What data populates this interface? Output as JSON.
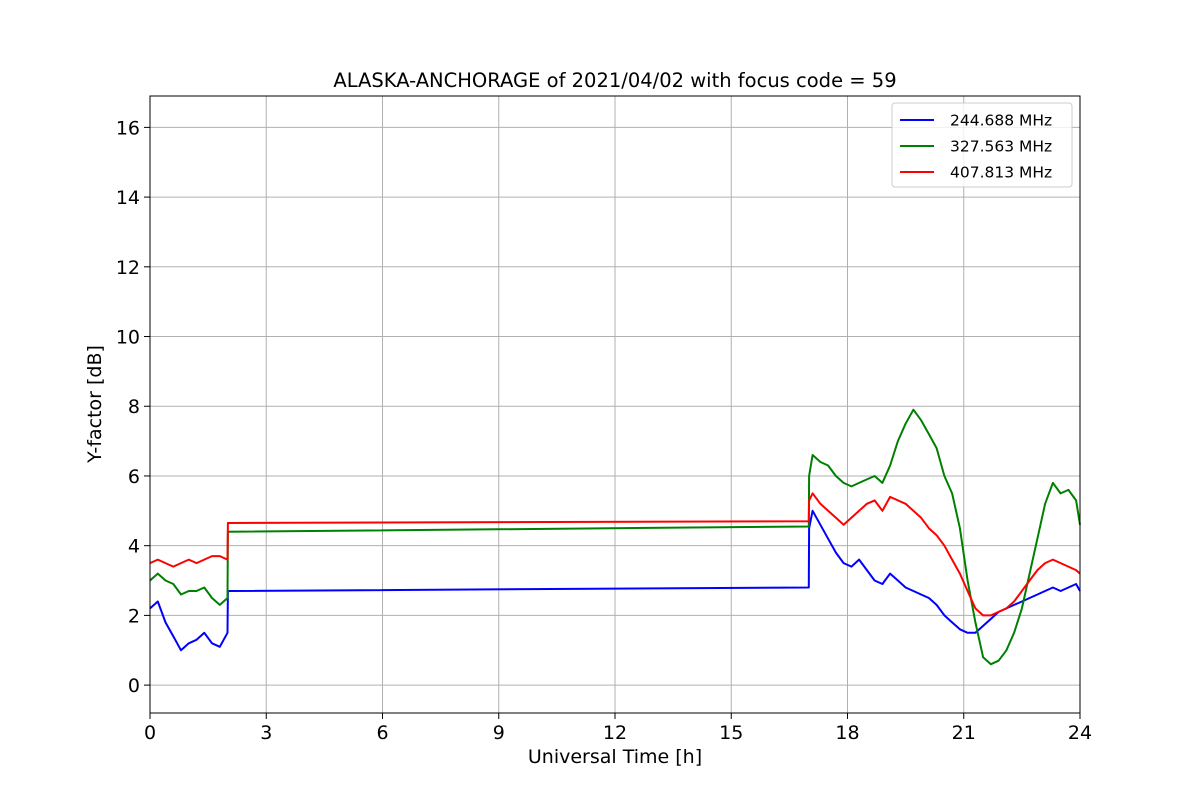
{
  "chart_data": {
    "type": "line",
    "title": "ALASKA-ANCHORAGE of 2021/04/02 with focus code = 59",
    "xlabel": "Universal Time [h]",
    "ylabel": "Y-factor [dB]",
    "xlim": [
      0,
      24
    ],
    "ylim": [
      -0.8,
      16.9
    ],
    "xticks": [
      0,
      3,
      6,
      9,
      12,
      15,
      18,
      21,
      24
    ],
    "xtick_labels": [
      "0",
      "3",
      "6",
      "9",
      "12",
      "15",
      "18",
      "21",
      "24"
    ],
    "yticks": [
      0,
      2,
      4,
      6,
      8,
      10,
      12,
      14,
      16
    ],
    "ytick_labels": [
      "0",
      "2",
      "4",
      "6",
      "8",
      "10",
      "12",
      "14",
      "16"
    ],
    "grid": true,
    "legend_position": "top-right",
    "series": [
      {
        "name": "244.688 MHz",
        "color": "#0000ff",
        "x": [
          0.0,
          0.2,
          0.4,
          0.6,
          0.8,
          1.0,
          1.2,
          1.4,
          1.6,
          1.8,
          2.0,
          2.01,
          17.0,
          17.01,
          17.1,
          17.3,
          17.5,
          17.7,
          17.9,
          18.1,
          18.3,
          18.5,
          18.7,
          18.9,
          19.1,
          19.3,
          19.5,
          19.7,
          19.9,
          20.1,
          20.3,
          20.5,
          20.7,
          20.9,
          21.1,
          21.3,
          21.5,
          21.7,
          21.9,
          22.1,
          22.3,
          22.5,
          22.7,
          22.9,
          23.1,
          23.3,
          23.5,
          23.7,
          23.9,
          24.0
        ],
        "y": [
          2.2,
          2.4,
          1.8,
          1.4,
          1.0,
          1.2,
          1.3,
          1.5,
          1.2,
          1.1,
          1.5,
          2.7,
          2.8,
          4.5,
          5.0,
          4.6,
          4.2,
          3.8,
          3.5,
          3.4,
          3.6,
          3.3,
          3.0,
          2.9,
          3.2,
          3.0,
          2.8,
          2.7,
          2.6,
          2.5,
          2.3,
          2.0,
          1.8,
          1.6,
          1.5,
          1.5,
          1.7,
          1.9,
          2.1,
          2.2,
          2.3,
          2.4,
          2.5,
          2.6,
          2.7,
          2.8,
          2.7,
          2.8,
          2.9,
          2.7
        ]
      },
      {
        "name": "327.563 MHz",
        "color": "#008000",
        "x": [
          0.0,
          0.2,
          0.4,
          0.6,
          0.8,
          1.0,
          1.2,
          1.4,
          1.6,
          1.8,
          2.0,
          2.01,
          17.0,
          17.01,
          17.1,
          17.3,
          17.5,
          17.7,
          17.9,
          18.1,
          18.3,
          18.5,
          18.7,
          18.9,
          19.1,
          19.3,
          19.5,
          19.7,
          19.9,
          20.1,
          20.3,
          20.5,
          20.7,
          20.9,
          21.1,
          21.3,
          21.5,
          21.7,
          21.9,
          22.1,
          22.3,
          22.5,
          22.7,
          22.9,
          23.1,
          23.3,
          23.5,
          23.7,
          23.9,
          24.0
        ],
        "y": [
          3.0,
          3.2,
          3.0,
          2.9,
          2.6,
          2.7,
          2.7,
          2.8,
          2.5,
          2.3,
          2.5,
          4.4,
          4.55,
          6.0,
          6.6,
          6.4,
          6.3,
          6.0,
          5.8,
          5.7,
          5.8,
          5.9,
          6.0,
          5.8,
          6.3,
          7.0,
          7.5,
          7.9,
          7.6,
          7.2,
          6.8,
          6.0,
          5.5,
          4.5,
          3.0,
          1.8,
          0.8,
          0.6,
          0.7,
          1.0,
          1.5,
          2.2,
          3.2,
          4.2,
          5.2,
          5.8,
          5.5,
          5.6,
          5.3,
          4.6
        ]
      },
      {
        "name": "407.813 MHz",
        "color": "#ff0000",
        "x": [
          0.0,
          0.2,
          0.4,
          0.6,
          0.8,
          1.0,
          1.2,
          1.4,
          1.6,
          1.8,
          2.0,
          2.01,
          17.0,
          17.01,
          17.1,
          17.3,
          17.5,
          17.7,
          17.9,
          18.1,
          18.3,
          18.5,
          18.7,
          18.9,
          19.1,
          19.3,
          19.5,
          19.7,
          19.9,
          20.1,
          20.3,
          20.5,
          20.7,
          20.9,
          21.1,
          21.3,
          21.5,
          21.7,
          21.9,
          22.1,
          22.3,
          22.5,
          22.7,
          22.9,
          23.1,
          23.3,
          23.5,
          23.7,
          23.9,
          24.0
        ],
        "y": [
          3.5,
          3.6,
          3.5,
          3.4,
          3.5,
          3.6,
          3.5,
          3.6,
          3.7,
          3.7,
          3.6,
          4.65,
          4.7,
          5.3,
          5.5,
          5.2,
          5.0,
          4.8,
          4.6,
          4.8,
          5.0,
          5.2,
          5.3,
          5.0,
          5.4,
          5.3,
          5.2,
          5.0,
          4.8,
          4.5,
          4.3,
          4.0,
          3.6,
          3.2,
          2.7,
          2.2,
          2.0,
          2.0,
          2.1,
          2.2,
          2.4,
          2.7,
          3.0,
          3.3,
          3.5,
          3.6,
          3.5,
          3.4,
          3.3,
          3.2
        ]
      }
    ]
  }
}
